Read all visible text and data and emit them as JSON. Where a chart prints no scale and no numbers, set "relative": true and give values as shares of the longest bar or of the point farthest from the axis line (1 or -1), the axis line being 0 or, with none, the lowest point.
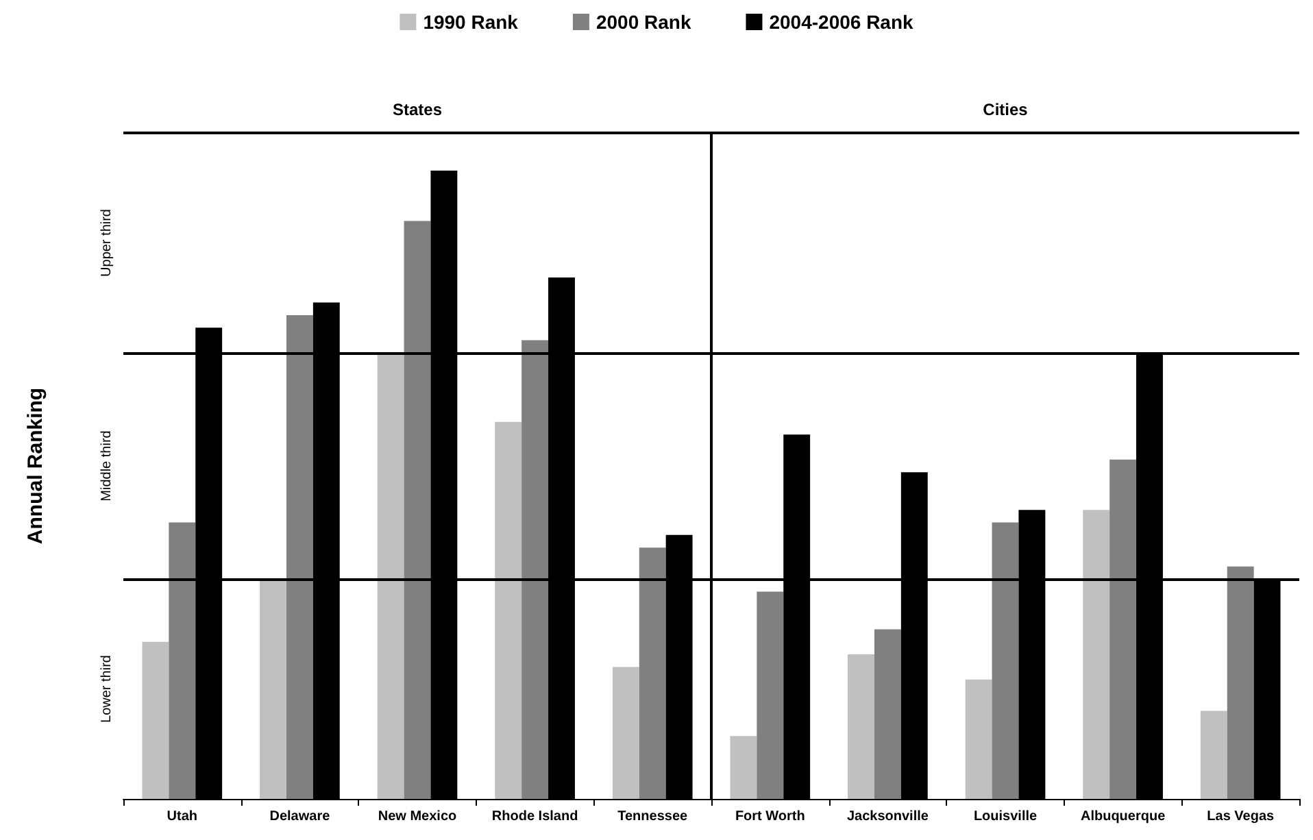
{
  "chart_data": {
    "type": "bar",
    "ylabel": "Annual Ranking",
    "relative": true,
    "categories": [
      "Utah",
      "Delaware",
      "New Mexico",
      "Rhode Island",
      "Tennessee",
      "Fort Worth",
      "Jacksonville",
      "Louisville",
      "Albuquerque",
      "Las Vegas"
    ],
    "series": [
      {
        "name": "1990 Rank",
        "color": "#c0c0c0",
        "values": [
          0.25,
          0.35,
          0.71,
          0.6,
          0.21,
          0.1,
          0.23,
          0.19,
          0.46,
          0.14
        ]
      },
      {
        "name": "2000 Rank",
        "color": "#808080",
        "values": [
          0.44,
          0.77,
          0.92,
          0.73,
          0.4,
          0.33,
          0.27,
          0.44,
          0.54,
          0.37
        ]
      },
      {
        "name": "2004-2006 Rank",
        "color": "#000000",
        "values": [
          0.75,
          0.79,
          1,
          0.83,
          0.42,
          0.58,
          0.52,
          0.46,
          0.71,
          0.35
        ]
      }
    ],
    "ref_lines": [
      {
        "axis": "y",
        "value": 0.35
      },
      {
        "axis": "y",
        "value": 0.71
      }
    ],
    "annotations": [
      "States",
      "Cities",
      "Lower third",
      "Middle third",
      "Upper third"
    ],
    "legend": "top"
  }
}
